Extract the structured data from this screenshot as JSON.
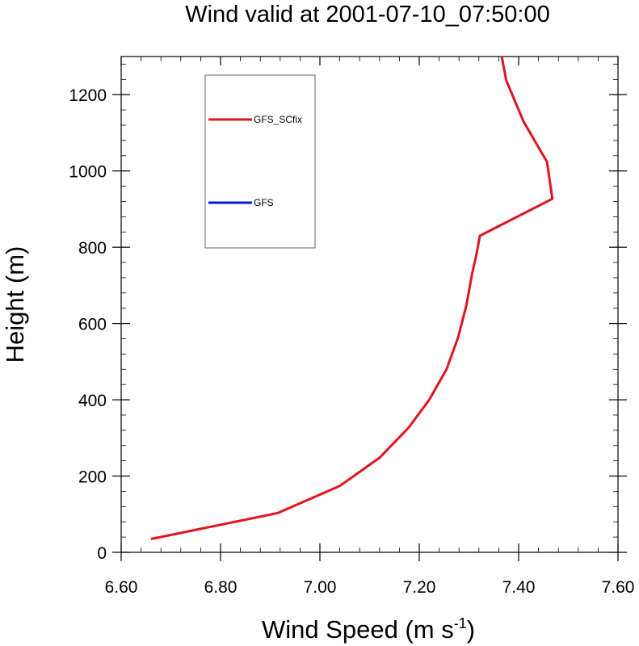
{
  "title": "Wind valid at 2001-07-10_07:50:00",
  "chart_data": {
    "type": "line",
    "title": "Wind valid at 2001-07-10_07:50:00",
    "xlabel_main": "Wind Speed (m s",
    "xlabel_sup": "-1",
    "xlabel_close": ")",
    "ylabel": "Height (m)",
    "xlim": [
      6.6,
      7.6
    ],
    "ylim": [
      0,
      1300
    ],
    "x_ticks": [
      6.6,
      6.8,
      7.0,
      7.2,
      7.4,
      7.6
    ],
    "x_tick_labels": [
      "6.60",
      "6.80",
      "7.00",
      "7.20",
      "7.40",
      "7.60"
    ],
    "y_ticks": [
      0,
      200,
      400,
      600,
      800,
      1000,
      1200
    ],
    "y_tick_labels": [
      "0",
      "200",
      "400",
      "600",
      "800",
      "1000",
      "1200"
    ],
    "grid": false,
    "legend_position": "upper-left",
    "series": [
      {
        "name": "GFS_SCfix",
        "color": "#e0141e",
        "x": [
          6.66,
          6.915,
          7.04,
          7.12,
          7.178,
          7.22,
          7.255,
          7.278,
          7.295,
          7.307,
          7.315,
          7.322,
          7.468,
          7.457,
          7.41,
          7.375,
          7.366
        ],
        "y": [
          35,
          103,
          174,
          248,
          326,
          400,
          480,
          563,
          648,
          735,
          780,
          830,
          927,
          1024,
          1129,
          1238,
          1300
        ]
      },
      {
        "name": "GFS",
        "color": "#0a14d2",
        "x": [],
        "y": []
      }
    ]
  }
}
